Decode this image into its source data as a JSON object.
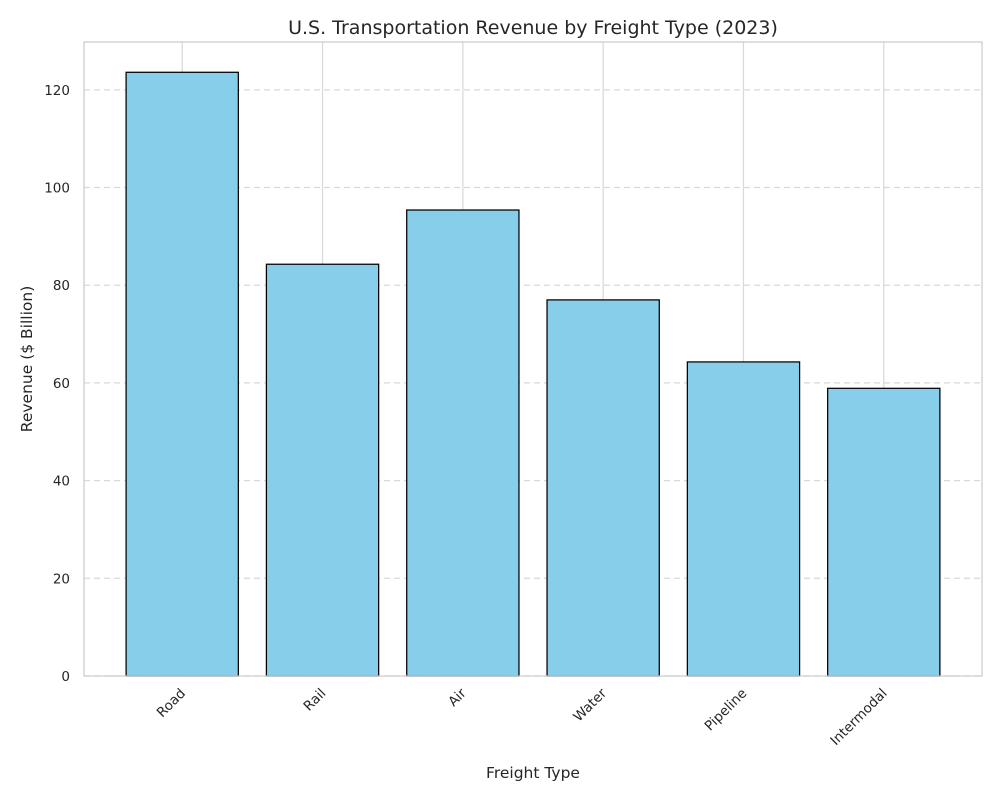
{
  "chart_data": {
    "type": "bar",
    "title": "U.S. Transportation Revenue by Freight Type (2023)",
    "xlabel": "Freight Type",
    "ylabel": "Revenue ($ Billion)",
    "categories": [
      "Road",
      "Rail",
      "Air",
      "Water",
      "Pipeline",
      "Intermodal"
    ],
    "values": [
      123.6,
      84.3,
      95.4,
      77.0,
      64.3,
      58.9
    ],
    "ylim": [
      0,
      129.8
    ],
    "yticks": [
      0,
      20,
      40,
      60,
      80,
      100,
      120
    ],
    "grid": {
      "x": true,
      "y": true,
      "y_style": "dashed"
    },
    "legend": "none",
    "colors": {
      "bar_fill": "#87ceeb",
      "bar_edge": "#000000",
      "grid": "#d9d9d9",
      "frame": "#cccccc",
      "text": "#262626"
    }
  }
}
